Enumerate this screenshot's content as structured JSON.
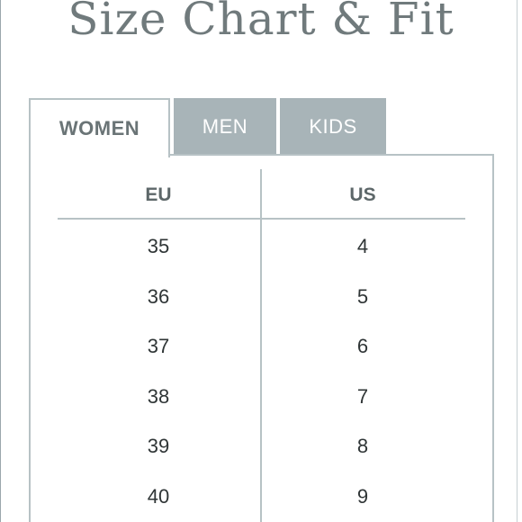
{
  "title": "Size Chart & Fit",
  "tabs": [
    {
      "label": "WOMEN",
      "active": true
    },
    {
      "label": "MEN",
      "active": false
    },
    {
      "label": "KIDS",
      "active": false
    }
  ],
  "table": {
    "headers": [
      "EU",
      "US"
    ],
    "rows": [
      [
        "35",
        "4"
      ],
      [
        "36",
        "5"
      ],
      [
        "37",
        "6"
      ],
      [
        "38",
        "7"
      ],
      [
        "39",
        "8"
      ],
      [
        "40",
        "9"
      ]
    ]
  },
  "colors": {
    "title": "#707a7c",
    "active_tab_text": "#6a7476",
    "inactive_tab_bg": "#a8b4b8",
    "border": "#b7c2c5",
    "cell_text": "#2f3536"
  }
}
